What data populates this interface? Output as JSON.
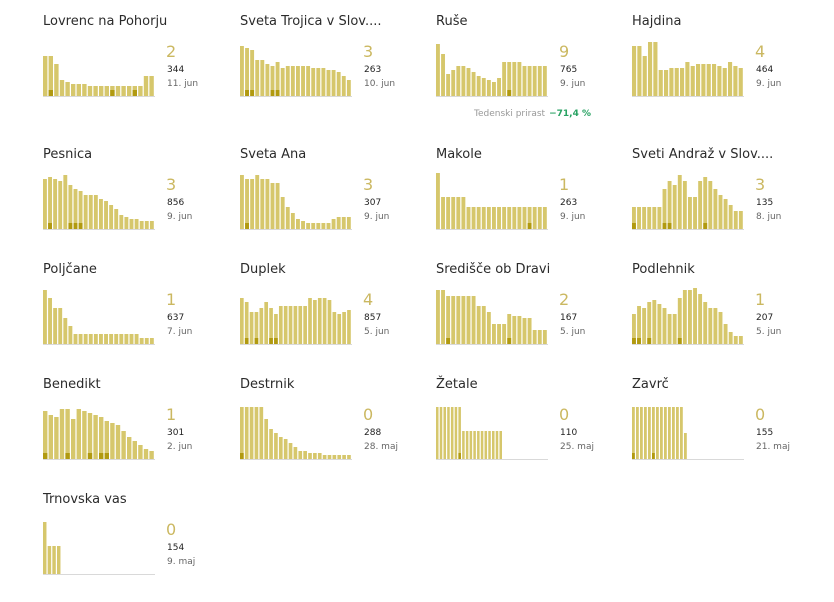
{
  "colors": {
    "bar": "#d6c76c",
    "bar_dark": "#b19a10",
    "axis": "#d9d9d9",
    "growth": "#2aa364"
  },
  "growth_label": "Tedenski prirast",
  "growth_value": "−71,4 %",
  "chart_data": [
    {
      "type": "bar",
      "title": "Lovrenc na Pohorju",
      "value": "2",
      "count": "344",
      "date": "11. jun",
      "values": [
        40,
        40,
        32,
        16,
        14,
        12,
        12,
        12,
        10,
        10,
        10,
        10,
        10,
        10,
        10,
        10,
        10,
        10,
        20,
        20
      ],
      "highlight": [
        0,
        1,
        0,
        0,
        0,
        0,
        0,
        0,
        0,
        0,
        0,
        0,
        1,
        0,
        0,
        0,
        1,
        0,
        0,
        0
      ]
    },
    {
      "type": "bar",
      "title": "Sveta Trojica v Slov....",
      "value": "3",
      "count": "263",
      "date": "10. jun",
      "values": [
        50,
        48,
        46,
        36,
        36,
        32,
        30,
        34,
        28,
        30,
        30,
        30,
        30,
        30,
        28,
        28,
        28,
        26,
        26,
        24,
        20,
        16
      ],
      "highlight": [
        0,
        1,
        1,
        0,
        0,
        0,
        1,
        1,
        0,
        0,
        0,
        0,
        0,
        0,
        0,
        0,
        0,
        0,
        0,
        0,
        0,
        0
      ]
    },
    {
      "type": "bar",
      "title": "Ruše",
      "value": "9",
      "count": "765",
      "date": "9. jun",
      "values": [
        52,
        42,
        22,
        26,
        30,
        30,
        28,
        24,
        20,
        18,
        16,
        14,
        18,
        34,
        34,
        34,
        34,
        30,
        30,
        30,
        30,
        30
      ],
      "highlight": [
        0,
        0,
        0,
        0,
        0,
        0,
        0,
        0,
        0,
        0,
        0,
        0,
        0,
        0,
        1,
        0,
        0,
        0,
        0,
        0,
        0,
        0
      ],
      "growth": true
    },
    {
      "type": "bar",
      "title": "Hajdina",
      "value": "4",
      "count": "464",
      "date": "9. jun",
      "values": [
        50,
        50,
        40,
        54,
        54,
        26,
        26,
        28,
        28,
        28,
        34,
        30,
        32,
        32,
        32,
        32,
        30,
        28,
        34,
        30,
        28
      ],
      "highlight": [
        0,
        0,
        0,
        0,
        0,
        0,
        0,
        0,
        0,
        0,
        0,
        0,
        0,
        0,
        0,
        0,
        0,
        0,
        0,
        0,
        0
      ]
    },
    {
      "type": "bar",
      "title": "Pesnica",
      "value": "3",
      "count": "856",
      "date": "9. jun",
      "values": [
        50,
        52,
        50,
        48,
        54,
        44,
        40,
        38,
        34,
        34,
        34,
        30,
        28,
        24,
        20,
        14,
        12,
        10,
        10,
        8,
        8,
        8
      ],
      "highlight": [
        0,
        1,
        0,
        0,
        0,
        1,
        1,
        1,
        0,
        0,
        0,
        0,
        0,
        0,
        0,
        0,
        0,
        0,
        0,
        0,
        0,
        0
      ]
    },
    {
      "type": "bar",
      "title": "Sveta Ana",
      "value": "3",
      "count": "307",
      "date": "9. jun",
      "values": [
        54,
        50,
        50,
        54,
        50,
        50,
        46,
        46,
        32,
        22,
        16,
        10,
        8,
        6,
        6,
        6,
        6,
        6,
        10,
        12,
        12,
        12
      ],
      "highlight": [
        0,
        1,
        0,
        0,
        0,
        0,
        0,
        0,
        0,
        0,
        0,
        0,
        0,
        0,
        0,
        0,
        0,
        0,
        0,
        0,
        0,
        0
      ]
    },
    {
      "type": "bar",
      "title": "Makole",
      "value": "1",
      "count": "263",
      "date": "9. jun",
      "values": [
        56,
        32,
        32,
        32,
        32,
        32,
        22,
        22,
        22,
        22,
        22,
        22,
        22,
        22,
        22,
        22,
        22,
        22,
        22,
        22,
        22,
        22
      ],
      "highlight": [
        0,
        0,
        0,
        0,
        0,
        0,
        0,
        0,
        0,
        0,
        0,
        0,
        0,
        0,
        0,
        0,
        0,
        0,
        1,
        0,
        0,
        0
      ]
    },
    {
      "type": "bar",
      "title": "Sveti Andraž v Slov....",
      "value": "3",
      "count": "135",
      "date": "8. jun",
      "values": [
        22,
        22,
        22,
        22,
        22,
        22,
        40,
        48,
        44,
        54,
        48,
        32,
        32,
        48,
        52,
        48,
        40,
        34,
        30,
        24,
        18,
        18
      ],
      "highlight": [
        1,
        0,
        0,
        0,
        0,
        0,
        1,
        1,
        0,
        0,
        0,
        0,
        0,
        0,
        1,
        0,
        0,
        0,
        0,
        0,
        0,
        0
      ]
    },
    {
      "type": "bar",
      "title": "Poljčane",
      "value": "1",
      "count": "637",
      "date": "7. jun",
      "values": [
        54,
        46,
        36,
        36,
        26,
        18,
        10,
        10,
        10,
        10,
        10,
        10,
        10,
        10,
        10,
        10,
        10,
        10,
        10,
        6,
        6,
        6
      ],
      "highlight": [
        0,
        0,
        0,
        0,
        0,
        0,
        0,
        0,
        0,
        0,
        0,
        0,
        0,
        0,
        0,
        0,
        0,
        0,
        0,
        0,
        0,
        0
      ]
    },
    {
      "type": "bar",
      "title": "Duplek",
      "value": "4",
      "count": "857",
      "date": "5. jun",
      "values": [
        46,
        42,
        32,
        32,
        36,
        42,
        36,
        30,
        38,
        38,
        38,
        38,
        38,
        38,
        46,
        44,
        46,
        46,
        44,
        32,
        30,
        32,
        34
      ],
      "highlight": [
        0,
        1,
        0,
        1,
        0,
        0,
        1,
        1,
        0,
        0,
        0,
        0,
        0,
        0,
        0,
        0,
        0,
        0,
        0,
        0,
        0,
        0,
        0
      ]
    },
    {
      "type": "bar",
      "title": "Središče ob Dravi",
      "value": "2",
      "count": "167",
      "date": "5. jun",
      "values": [
        54,
        54,
        48,
        48,
        48,
        48,
        48,
        48,
        38,
        38,
        32,
        20,
        20,
        20,
        30,
        28,
        28,
        26,
        26,
        14,
        14,
        14
      ],
      "highlight": [
        0,
        0,
        1,
        0,
        0,
        0,
        0,
        0,
        0,
        0,
        0,
        0,
        0,
        0,
        1,
        0,
        0,
        0,
        0,
        0,
        0,
        0
      ]
    },
    {
      "type": "bar",
      "title": "Podlehnik",
      "value": "1",
      "count": "207",
      "date": "5. jun",
      "values": [
        30,
        38,
        36,
        42,
        44,
        40,
        36,
        30,
        30,
        46,
        54,
        54,
        56,
        50,
        42,
        36,
        36,
        32,
        20,
        12,
        8,
        8
      ],
      "highlight": [
        1,
        1,
        0,
        1,
        0,
        0,
        0,
        0,
        0,
        1,
        0,
        0,
        0,
        0,
        0,
        0,
        0,
        0,
        0,
        0,
        0,
        0
      ]
    },
    {
      "type": "bar",
      "title": "Benedikt",
      "value": "1",
      "count": "301",
      "date": "2. jun",
      "values": [
        48,
        44,
        42,
        50,
        50,
        40,
        50,
        48,
        46,
        44,
        42,
        38,
        36,
        34,
        28,
        22,
        18,
        14,
        10,
        8
      ],
      "highlight": [
        1,
        0,
        0,
        0,
        1,
        0,
        0,
        0,
        1,
        0,
        1,
        1,
        0,
        0,
        0,
        0,
        0,
        0,
        0,
        0
      ]
    },
    {
      "type": "bar",
      "title": "Destrnik",
      "value": "0",
      "count": "288",
      "date": "28. maj",
      "values": [
        52,
        52,
        52,
        52,
        52,
        40,
        30,
        26,
        22,
        20,
        16,
        12,
        8,
        8,
        6,
        6,
        6,
        4,
        4,
        4,
        4,
        4,
        4
      ],
      "highlight": [
        1,
        0,
        0,
        0,
        0,
        0,
        0,
        0,
        0,
        0,
        0,
        0,
        0,
        0,
        0,
        0,
        0,
        0,
        0,
        0,
        0,
        0,
        0
      ]
    },
    {
      "type": "bar",
      "title": "Žetale",
      "value": "0",
      "count": "110",
      "date": "25. maj",
      "values": [
        52,
        52,
        52,
        52,
        52,
        52,
        52,
        28,
        28,
        28,
        28,
        28,
        28,
        28,
        28,
        28,
        28,
        28,
        0,
        0,
        0,
        0,
        0,
        0,
        0,
        0,
        0,
        0,
        0,
        0
      ],
      "highlight": [
        0,
        0,
        0,
        0,
        0,
        0,
        1,
        0,
        0,
        0,
        0,
        0,
        0,
        0,
        0,
        0,
        0,
        0,
        0,
        0,
        0,
        0,
        0,
        0,
        0,
        0,
        0,
        0,
        0,
        0
      ]
    },
    {
      "type": "bar",
      "title": "Zavrč",
      "value": "0",
      "count": "155",
      "date": "21. maj",
      "values": [
        52,
        52,
        52,
        52,
        52,
        52,
        52,
        52,
        52,
        52,
        52,
        52,
        52,
        26,
        0,
        0,
        0,
        0,
        0,
        0,
        0,
        0,
        0,
        0,
        0,
        0,
        0,
        0
      ],
      "highlight": [
        1,
        0,
        0,
        0,
        0,
        1,
        0,
        0,
        0,
        0,
        0,
        0,
        0,
        0,
        0,
        0,
        0,
        0,
        0,
        0,
        0,
        0,
        0,
        0,
        0,
        0,
        0,
        0
      ]
    },
    {
      "type": "bar",
      "title": "Trnovska vas",
      "value": "0",
      "count": "154",
      "date": "9. maj",
      "values": [
        52,
        28,
        28,
        28,
        0,
        0,
        0,
        0,
        0,
        0,
        0,
        0,
        0,
        0,
        0,
        0,
        0,
        0,
        0,
        0,
        0,
        0,
        0,
        0
      ],
      "highlight": [
        0,
        0,
        0,
        0,
        0,
        0,
        0,
        0,
        0,
        0,
        0,
        0,
        0,
        0,
        0,
        0,
        0,
        0,
        0,
        0,
        0,
        0,
        0,
        0
      ]
    }
  ]
}
